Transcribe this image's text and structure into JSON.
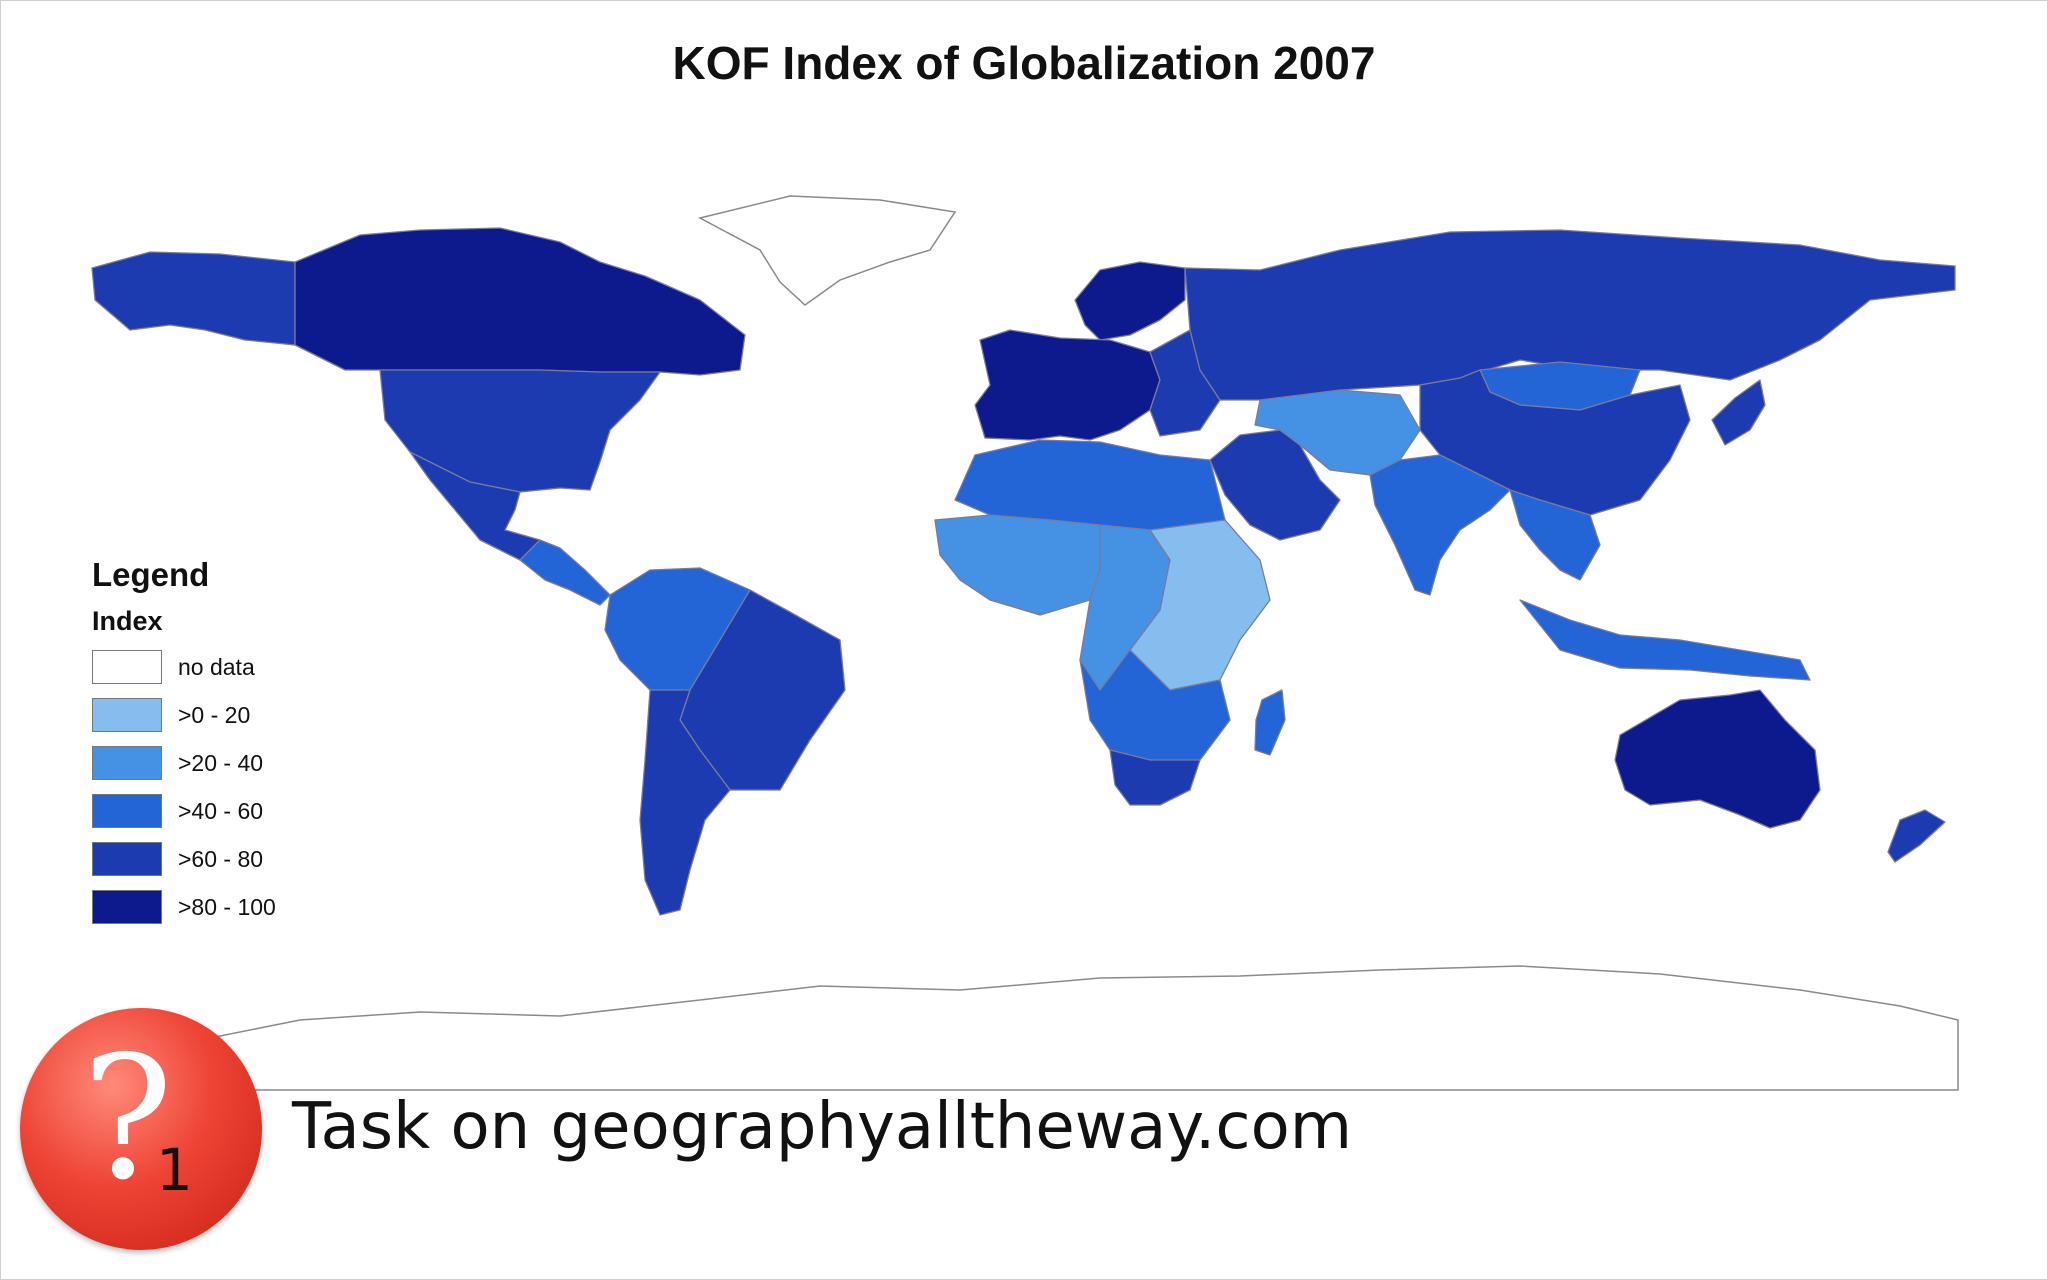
{
  "title": "KOF Index of Globalization 2007",
  "legend": {
    "heading": "Legend",
    "subheading": "Index",
    "classes": [
      {
        "label": "no data",
        "color": "#ffffff"
      },
      {
        "label": ">0 - 20",
        "color": "#85bdee"
      },
      {
        "label": ">20 - 40",
        "color": "#4592e4"
      },
      {
        "label": ">40 - 60",
        "color": "#2364d6"
      },
      {
        "label": ">60 - 80",
        "color": "#1d3bb0"
      },
      {
        "label": ">80 - 100",
        "color": "#0d1a8e"
      }
    ]
  },
  "map": {
    "regions": [
      {
        "name": "canada",
        "class": ">80 - 100"
      },
      {
        "name": "alaska",
        "class": ">60 - 80"
      },
      {
        "name": "usa",
        "class": ">60 - 80"
      },
      {
        "name": "mexico",
        "class": ">60 - 80"
      },
      {
        "name": "central-america",
        "class": ">40 - 60"
      },
      {
        "name": "south-america-north",
        "class": ">40 - 60"
      },
      {
        "name": "brazil",
        "class": ">60 - 80"
      },
      {
        "name": "southern-cone",
        "class": ">60 - 80"
      },
      {
        "name": "western-europe",
        "class": ">80 - 100"
      },
      {
        "name": "scandinavia",
        "class": ">80 - 100"
      },
      {
        "name": "eastern-europe",
        "class": ">60 - 80"
      },
      {
        "name": "russia",
        "class": ">60 - 80"
      },
      {
        "name": "north-africa",
        "class": ">40 - 60"
      },
      {
        "name": "west-africa",
        "class": ">20 - 40"
      },
      {
        "name": "central-africa",
        "class": ">20 - 40"
      },
      {
        "name": "east-africa",
        "class": ">0 - 20"
      },
      {
        "name": "southern-africa",
        "class": ">40 - 60"
      },
      {
        "name": "south-africa",
        "class": ">60 - 80"
      },
      {
        "name": "middle-east",
        "class": ">60 - 80"
      },
      {
        "name": "central-asia",
        "class": ">20 - 40"
      },
      {
        "name": "mongolia",
        "class": ">40 - 60"
      },
      {
        "name": "india",
        "class": ">40 - 60"
      },
      {
        "name": "china",
        "class": ">60 - 80"
      },
      {
        "name": "japan",
        "class": ">60 - 80"
      },
      {
        "name": "southeast-asia",
        "class": ">40 - 60"
      },
      {
        "name": "indonesia",
        "class": ">40 - 60"
      },
      {
        "name": "australia",
        "class": ">80 - 100"
      },
      {
        "name": "new-zealand",
        "class": ">60 - 80"
      },
      {
        "name": "madagascar",
        "class": ">40 - 60"
      },
      {
        "name": "greenland",
        "class": "no data"
      },
      {
        "name": "antarctica",
        "class": "no data"
      }
    ]
  },
  "badge": {
    "number": "1"
  },
  "caption": "Task on geographyalltheway.com"
}
